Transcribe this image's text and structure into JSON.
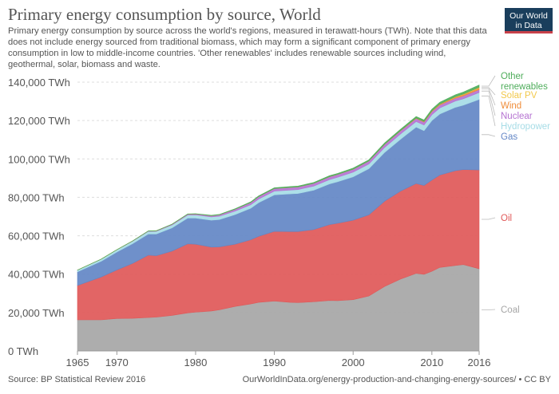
{
  "header": {
    "title": "Primary energy consumption by source, World",
    "subtitle": "Primary energy consumption by source across the world's regions, measured in terawatt-hours (TWh). Note that this data does not include energy sourced from traditional biomass, which may form a significant component of primary energy consumption in low to middle-income countries. 'Other renewables' includes renewable sources including wind, geothermal, solar, biomass and waste."
  },
  "logo": {
    "line1": "Our World",
    "line2": "in Data"
  },
  "footer": {
    "source": "Source: BP Statistical Review 2016",
    "url": "OurWorldInData.org/energy-production-and-changing-energy-sources/ • CC BY"
  },
  "colors": {
    "coal": "#a6a6a6",
    "oil": "#e05858",
    "gas": "#6387c6",
    "hydropower": "#a6dce6",
    "nuclear": "#b573d1",
    "wind": "#ef8d3a",
    "solar": "#f2c94c",
    "other": "#4fad5b",
    "grid": "#dddddd",
    "axis_text": "#555555"
  },
  "chart_data": {
    "type": "area",
    "stacked": true,
    "title": "Primary energy consumption by source, World",
    "ylabel": "",
    "xlabel": "",
    "ylim": [
      0,
      140000
    ],
    "y_ticks": [
      0,
      20000,
      40000,
      60000,
      80000,
      100000,
      120000,
      140000
    ],
    "y_tick_labels": [
      "0 TWh",
      "20,000 TWh",
      "40,000 TWh",
      "60,000 TWh",
      "80,000 TWh",
      "100,000 TWh",
      "120,000 TWh",
      "140,000 TWh"
    ],
    "x_ticks": [
      1965,
      1970,
      1980,
      1990,
      2000,
      2010,
      2016
    ],
    "x_tick_labels": [
      "1965",
      "1970",
      "1980",
      "1990",
      "2000",
      "2010",
      "2016"
    ],
    "grid": true,
    "legend": "right",
    "x": [
      1965,
      1968,
      1970,
      1972,
      1974,
      1975,
      1977,
      1979,
      1980,
      1982,
      1983,
      1985,
      1987,
      1988,
      1990,
      1992,
      1993,
      1995,
      1997,
      1998,
      2000,
      2002,
      2004,
      2006,
      2008,
      2009,
      2010,
      2011,
      2013,
      2014,
      2016
    ],
    "series": [
      {
        "name": "Coal",
        "label": "Coal",
        "color_key": "coal",
        "values": [
          16200,
          16200,
          16900,
          17000,
          17400,
          17600,
          18500,
          19800,
          20200,
          20800,
          21400,
          23200,
          24500,
          25300,
          26000,
          25300,
          25200,
          25600,
          26300,
          26200,
          26700,
          28600,
          33600,
          37400,
          40400,
          39900,
          41500,
          43500,
          44500,
          45000,
          42800
        ]
      },
      {
        "name": "Oil",
        "label": "Oil",
        "color_key": "oil",
        "values": [
          17900,
          22300,
          25300,
          28600,
          32500,
          32000,
          33500,
          36000,
          35400,
          33300,
          32800,
          32400,
          33400,
          34400,
          36300,
          36900,
          37000,
          37600,
          39500,
          40300,
          41400,
          42300,
          44400,
          45800,
          46800,
          46300,
          47500,
          48100,
          49400,
          49500,
          51500
        ]
      },
      {
        "name": "Gas",
        "label": "Gas",
        "color_key": "gas",
        "values": [
          7100,
          8200,
          9300,
          10300,
          11000,
          11300,
          12100,
          13400,
          13600,
          14000,
          14200,
          15400,
          16400,
          17500,
          19000,
          19600,
          19800,
          20500,
          21200,
          21600,
          22600,
          24000,
          25400,
          27000,
          29400,
          28500,
          31000,
          31800,
          33000,
          33500,
          36700
        ]
      },
      {
        "name": "Hydropower",
        "label": "Hydropower",
        "color_key": "hydropower",
        "values": [
          900,
          1050,
          1150,
          1250,
          1350,
          1400,
          1500,
          1600,
          1650,
          1700,
          1750,
          1800,
          1850,
          1900,
          1950,
          2000,
          2050,
          2150,
          2250,
          2300,
          2400,
          2450,
          2600,
          2750,
          2900,
          2950,
          3050,
          3150,
          3300,
          3350,
          3600
        ]
      },
      {
        "name": "Nuclear",
        "label": "Nuclear",
        "color_key": "nuclear",
        "values": [
          10,
          30,
          60,
          110,
          200,
          250,
          350,
          450,
          500,
          650,
          750,
          1000,
          1200,
          1300,
          1350,
          1400,
          1400,
          1450,
          1500,
          1500,
          1550,
          1550,
          1600,
          1600,
          1600,
          1550,
          1600,
          1550,
          1450,
          1500,
          1500
        ]
      },
      {
        "name": "Wind",
        "label": "Wind",
        "color_key": "wind",
        "values": [
          0,
          0,
          0,
          0,
          0,
          0,
          0,
          0,
          0,
          0,
          0,
          0,
          0,
          0,
          5,
          5,
          5,
          10,
          15,
          20,
          35,
          60,
          90,
          140,
          220,
          280,
          350,
          440,
          640,
          720,
          960
        ]
      },
      {
        "name": "Solar PV",
        "label": "Solar PV",
        "color_key": "solar",
        "values": [
          0,
          0,
          0,
          0,
          0,
          0,
          0,
          0,
          0,
          0,
          0,
          0,
          0,
          0,
          0,
          0,
          0,
          0,
          0,
          0,
          1,
          1,
          3,
          5,
          12,
          20,
          32,
          64,
          125,
          190,
          250
        ]
      },
      {
        "name": "Other renewables",
        "label": "Other renewables",
        "color_key": "other",
        "values": [
          30,
          40,
          50,
          60,
          80,
          90,
          110,
          130,
          150,
          180,
          200,
          250,
          300,
          330,
          380,
          400,
          420,
          450,
          500,
          520,
          560,
          580,
          620,
          700,
          780,
          820,
          880,
          930,
          1040,
          1100,
          1200
        ]
      }
    ]
  }
}
